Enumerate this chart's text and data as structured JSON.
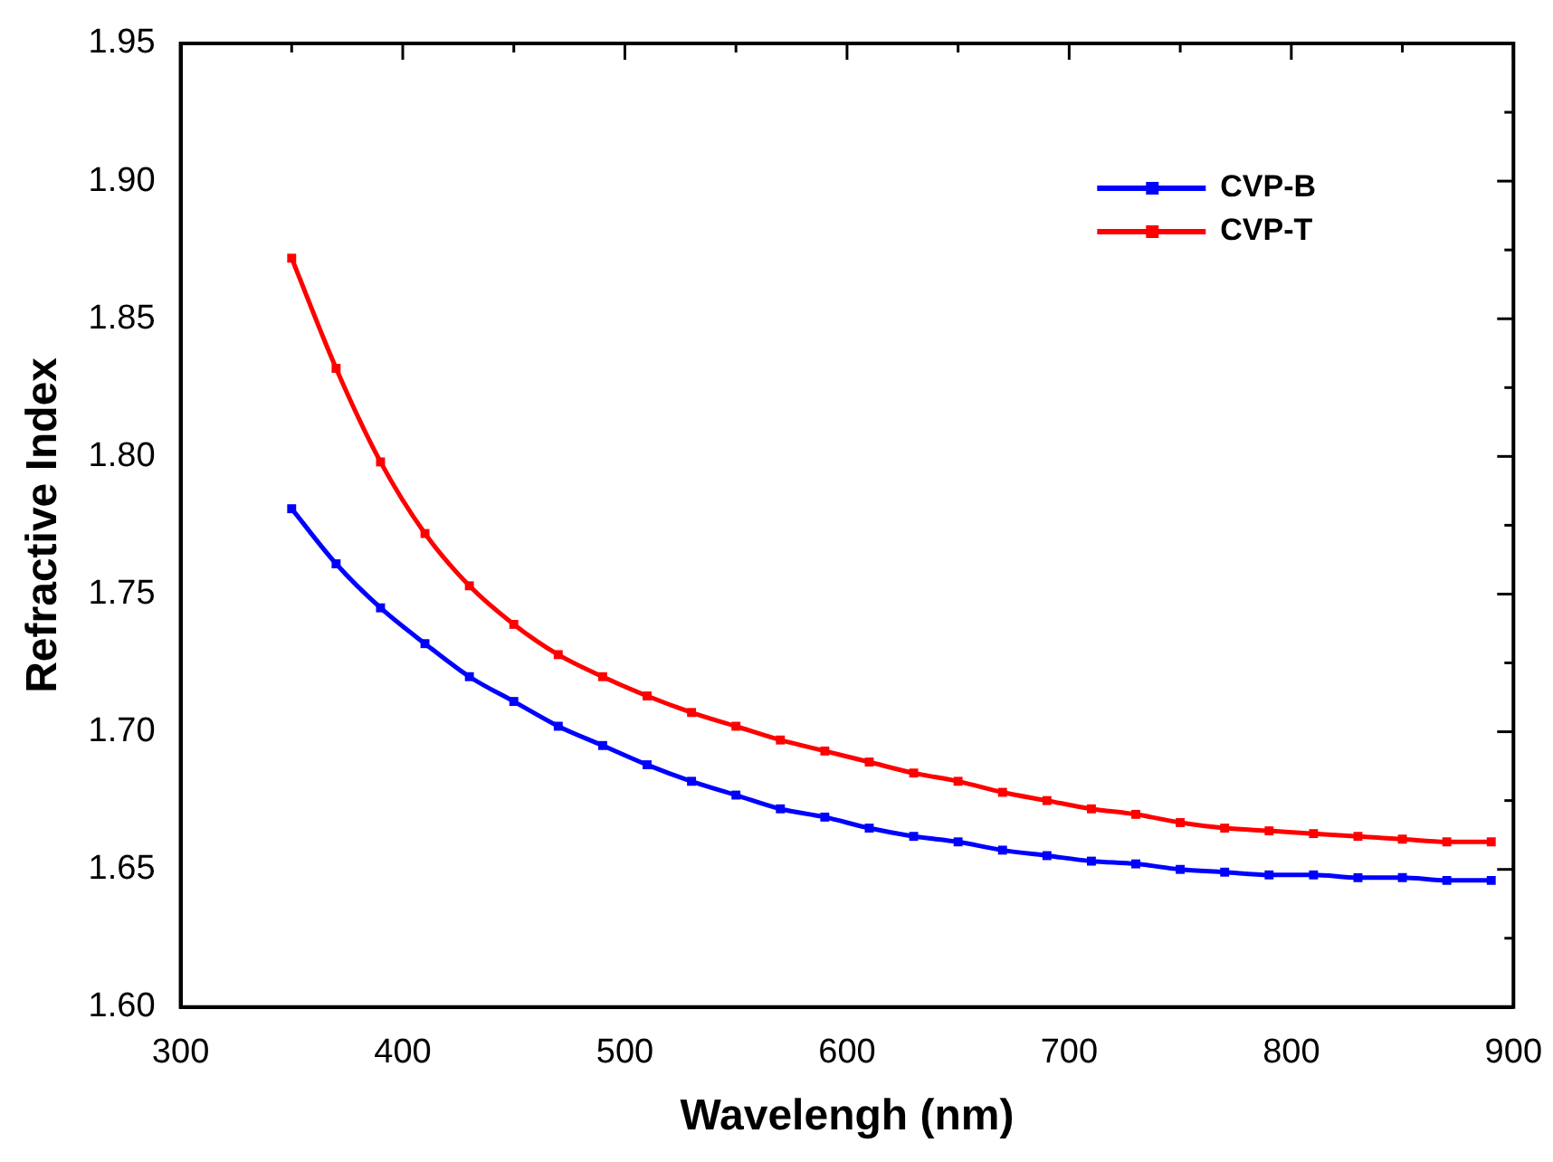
{
  "chart_data": {
    "type": "line",
    "xlabel": "Wavelengh (nm)",
    "ylabel": "Refractive Index",
    "x": [
      350,
      370,
      390,
      410,
      430,
      450,
      470,
      490,
      510,
      530,
      550,
      570,
      590,
      610,
      630,
      650,
      670,
      690,
      710,
      730,
      750,
      770,
      790,
      810,
      830,
      850,
      870,
      890
    ],
    "series": [
      {
        "name": "CVP-B",
        "color": "#0000ff",
        "values": [
          1.781,
          1.761,
          1.745,
          1.732,
          1.72,
          1.711,
          1.702,
          1.695,
          1.688,
          1.682,
          1.677,
          1.672,
          1.669,
          1.665,
          1.662,
          1.66,
          1.657,
          1.655,
          1.653,
          1.652,
          1.65,
          1.649,
          1.648,
          1.648,
          1.647,
          1.647,
          1.646,
          1.646
        ]
      },
      {
        "name": "CVP-T",
        "color": "#ff0000",
        "values": [
          1.872,
          1.832,
          1.798,
          1.772,
          1.753,
          1.739,
          1.728,
          1.72,
          1.713,
          1.707,
          1.702,
          1.697,
          1.693,
          1.689,
          1.685,
          1.682,
          1.678,
          1.675,
          1.672,
          1.67,
          1.667,
          1.665,
          1.664,
          1.663,
          1.662,
          1.661,
          1.66,
          1.66
        ]
      }
    ],
    "xlim": [
      300,
      900
    ],
    "xticks": [
      300,
      {
        "value": 350,
        "label": null
      },
      400,
      {
        "value": 450,
        "label": null
      },
      500,
      {
        "value": 550,
        "label": null
      },
      600,
      {
        "value": 650,
        "label": null
      },
      700,
      {
        "value": 750,
        "label": null
      },
      800,
      {
        "value": 850,
        "label": null
      },
      900
    ],
    "ylim": [
      1.6,
      1.95
    ],
    "yticks": [
      {
        "value": 1.6,
        "label": "1.60"
      },
      {
        "value": 1.625,
        "label": null
      },
      {
        "value": 1.65,
        "label": "1.65"
      },
      {
        "value": 1.675,
        "label": null
      },
      {
        "value": 1.7,
        "label": "1.70"
      },
      {
        "value": 1.725,
        "label": null
      },
      {
        "value": 1.75,
        "label": "1.75"
      },
      {
        "value": 1.775,
        "label": null
      },
      {
        "value": 1.8,
        "label": "1.80"
      },
      {
        "value": 1.825,
        "label": null
      },
      {
        "value": 1.85,
        "label": "1.85"
      },
      {
        "value": 1.875,
        "label": null
      },
      {
        "value": 1.9,
        "label": "1.90"
      },
      {
        "value": 1.925,
        "label": null
      },
      {
        "value": 1.95,
        "label": "1.95"
      }
    ],
    "grid": false,
    "legend": "top right",
    "marker": "square",
    "line_style": "solid"
  }
}
